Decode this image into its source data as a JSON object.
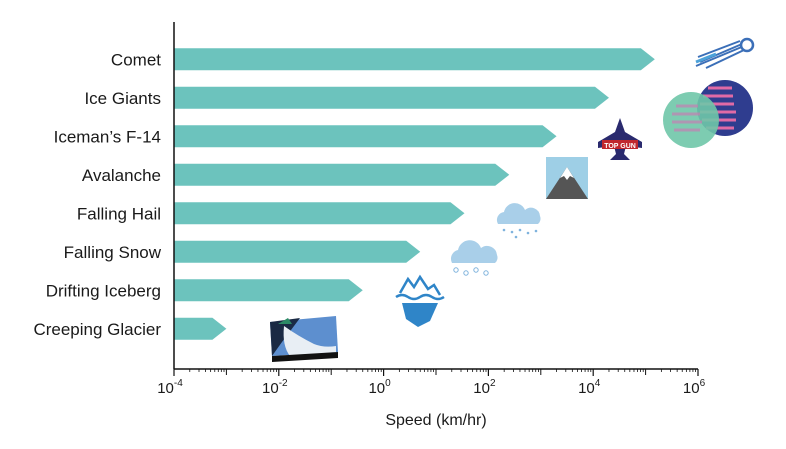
{
  "chart_data": {
    "type": "bar",
    "orientation": "horizontal",
    "xscale": "log",
    "xlim": [
      0.0001,
      1000000
    ],
    "xlabel": "Speed (km/hr)",
    "x_ticks": [
      {
        "base": "10",
        "exp": "-4",
        "value": 0.0001
      },
      {
        "base": "10",
        "exp": "-2",
        "value": 0.01
      },
      {
        "base": "10",
        "exp": "0",
        "value": 1
      },
      {
        "base": "10",
        "exp": "2",
        "value": 100
      },
      {
        "base": "10",
        "exp": "4",
        "value": 10000
      },
      {
        "base": "10",
        "exp": "6",
        "value": 1000000
      }
    ],
    "categories": [
      "Comet",
      "Ice Giants",
      "Iceman’s F-14",
      "Avalanche",
      "Falling Hail",
      "Falling Snow",
      "Drifting Iceberg",
      "Creeping Glacier"
    ],
    "values": [
      150000,
      20000,
      2000,
      250,
      35,
      5,
      0.4,
      0.001
    ],
    "grid": false,
    "colors": {
      "bar": "#6cc3bd",
      "axis": "#111111"
    }
  },
  "icons": [
    "comet-icon",
    "ice-giants-icon",
    "top-gun-icon",
    "mountain-icon",
    "hail-cloud-icon",
    "snow-cloud-icon",
    "iceberg-icon",
    "glacier-icon"
  ],
  "icon_labels": {
    "top_gun": "TOP GUN"
  }
}
